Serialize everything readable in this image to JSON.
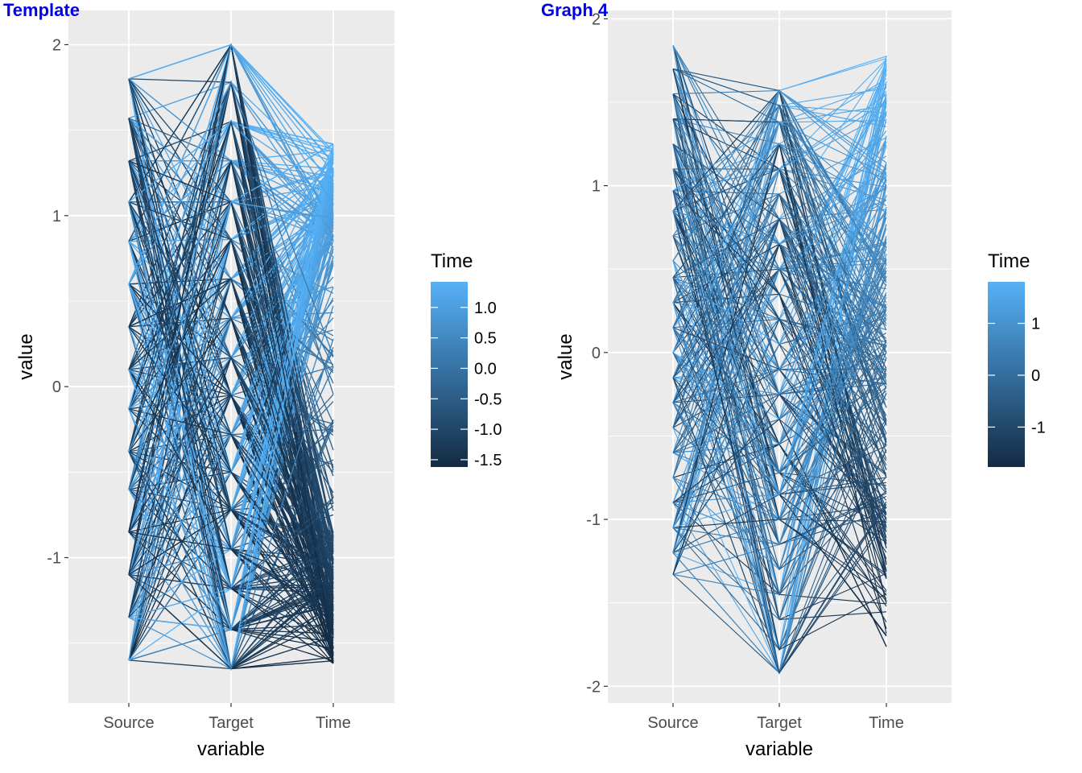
{
  "chart_data": [
    {
      "type": "line",
      "subtype": "parallel-coordinates",
      "title": "Template",
      "title_color": "#0000ee",
      "xlabel": "variable",
      "ylabel": "value",
      "categories": [
        "Source",
        "Target",
        "Time"
      ],
      "ylim": [
        -1.85,
        2.2
      ],
      "yticks": [
        -1,
        0,
        1,
        2
      ],
      "ytick_labels": [
        "-1",
        "0",
        "1",
        "2"
      ],
      "grid": true,
      "source_levels": [
        -1.6,
        -1.35,
        -1.1,
        -0.85,
        -0.6,
        -0.38,
        -0.13,
        0.1,
        0.35,
        0.6,
        0.85,
        1.08,
        1.32,
        1.57,
        1.8
      ],
      "target_levels": [
        -1.65,
        -1.42,
        -1.18,
        -0.95,
        -0.72,
        -0.5,
        -0.28,
        -0.05,
        0.17,
        0.4,
        0.63,
        0.86,
        1.08,
        1.32,
        1.55,
        1.78,
        2.0
      ],
      "time_range": [
        -1.62,
        1.42
      ],
      "n_lines": 420,
      "line_width": 1.3,
      "legend": {
        "title": "Time",
        "position": "right",
        "range": [
          -1.62,
          1.42
        ],
        "ticks": [
          1.0,
          0.5,
          0.0,
          -0.5,
          -1.0,
          -1.5
        ],
        "tick_labels": [
          "1.0",
          "0.5",
          "0.0",
          "-0.5",
          "-1.0",
          "-1.5"
        ],
        "colors": [
          "#132b43",
          "#56b1f7"
        ]
      }
    },
    {
      "type": "line",
      "subtype": "parallel-coordinates",
      "title": "Graph 4",
      "title_color": "#0000ee",
      "xlabel": "variable",
      "ylabel": "value",
      "categories": [
        "Source",
        "Target",
        "Time"
      ],
      "ylim": [
        -2.1,
        2.05
      ],
      "yticks": [
        -2,
        -1,
        0,
        1,
        2
      ],
      "ytick_labels": [
        "-2",
        "-1",
        "0",
        "1",
        "2"
      ],
      "grid": true,
      "source_levels": [
        -1.33,
        -1.2,
        -1.05,
        -0.9,
        -0.75,
        -0.6,
        -0.45,
        -0.3,
        -0.15,
        0.0,
        0.15,
        0.3,
        0.45,
        0.55,
        0.7,
        0.85,
        0.97,
        1.1,
        1.25,
        1.4,
        1.55,
        1.7,
        1.84
      ],
      "target_levels": [
        -1.92,
        -1.78,
        -1.6,
        -1.45,
        -1.3,
        -1.15,
        -1.0,
        -0.85,
        -0.72,
        -0.55,
        -0.4,
        -0.25,
        -0.1,
        0.05,
        0.2,
        0.35,
        0.5,
        0.65,
        0.8,
        0.95,
        1.1,
        1.25,
        1.38,
        1.48,
        1.57
      ],
      "time_range": [
        -1.77,
        1.8
      ],
      "n_lines": 300,
      "line_width": 1.1,
      "legend": {
        "title": "Time",
        "position": "right",
        "range": [
          -1.77,
          1.8
        ],
        "ticks": [
          1,
          0,
          -1
        ],
        "tick_labels": [
          "1",
          "0",
          "-1"
        ],
        "colors": [
          "#132b43",
          "#56b1f7"
        ]
      }
    }
  ]
}
